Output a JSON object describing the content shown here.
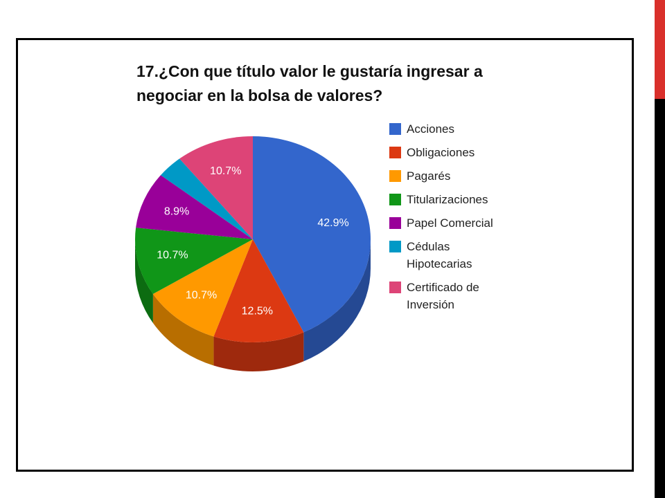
{
  "chart_data": {
    "type": "pie",
    "title": "17.¿Con que título valor le gustaría ingresar a negociar en la bolsa de valores?",
    "categories": [
      "Acciones",
      "Obligaciones",
      "Pagarés",
      "Titularizaciones",
      "Papel Comercial",
      "Cédulas Hipotecarias",
      "Certificado de Inversión"
    ],
    "values": [
      42.9,
      12.5,
      10.7,
      10.7,
      8.9,
      3.6,
      10.7
    ],
    "value_labels": [
      "42.9%",
      "12.5%",
      "10.7%",
      "10.7%",
      "8.9%",
      null,
      "10.7%"
    ],
    "colors": [
      "#3366cc",
      "#dc3912",
      "#ff9900",
      "#109618",
      "#990099",
      "#0099c6",
      "#dd4477"
    ]
  }
}
